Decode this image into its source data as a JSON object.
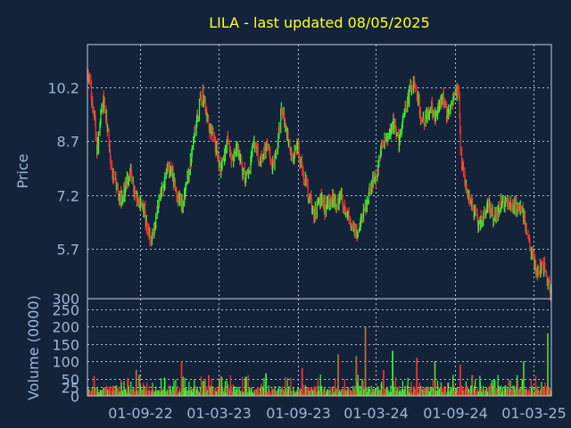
{
  "chart_data": [
    {
      "type": "candlestick",
      "title": "LILA - last updated 08/05/2025",
      "ylabel": "Price",
      "ylim": [
        4.3,
        11.4
      ],
      "y_ticks": [
        {
          "value": 5.7,
          "label": "5.7"
        },
        {
          "value": 7.2,
          "label": "7.2"
        },
        {
          "value": 8.7,
          "label": "8.7"
        },
        {
          "value": 10.2,
          "label": "10.2"
        }
      ],
      "x_ticks": [
        "01-09-22",
        "01-03-23",
        "01-09-23",
        "01-03-24",
        "01-09-24",
        "01-03-25"
      ],
      "up_color": "#33ff33",
      "down_color": "#ff3333",
      "price_path": [
        [
          "2022-05-01",
          10.6
        ],
        [
          "2022-05-10",
          10.0
        ],
        [
          "2022-05-18",
          9.3
        ],
        [
          "2022-05-24",
          8.4
        ],
        [
          "2022-06-01",
          9.4
        ],
        [
          "2022-06-08",
          9.9
        ],
        [
          "2022-06-14",
          9.3
        ],
        [
          "2022-06-21",
          8.6
        ],
        [
          "2022-06-28",
          7.7
        ],
        [
          "2022-07-05",
          7.6
        ],
        [
          "2022-07-12",
          7.2
        ],
        [
          "2022-07-19",
          7.0
        ],
        [
          "2022-07-26",
          7.3
        ],
        [
          "2022-08-02",
          7.6
        ],
        [
          "2022-08-09",
          7.9
        ],
        [
          "2022-08-16",
          7.4
        ],
        [
          "2022-08-23",
          7.1
        ],
        [
          "2022-08-30",
          7.0
        ],
        [
          "2022-09-06",
          6.9
        ],
        [
          "2022-09-13",
          6.5
        ],
        [
          "2022-09-20",
          6.1
        ],
        [
          "2022-09-27",
          5.9
        ],
        [
          "2022-10-04",
          6.4
        ],
        [
          "2022-10-11",
          6.8
        ],
        [
          "2022-10-18",
          7.2
        ],
        [
          "2022-10-25",
          7.5
        ],
        [
          "2022-11-01",
          7.8
        ],
        [
          "2022-11-08",
          8.0
        ],
        [
          "2022-11-15",
          7.7
        ],
        [
          "2022-11-22",
          7.3
        ],
        [
          "2022-11-29",
          7.1
        ],
        [
          "2022-12-06",
          6.9
        ],
        [
          "2022-12-13",
          7.2
        ],
        [
          "2022-12-20",
          7.7
        ],
        [
          "2022-12-27",
          8.2
        ],
        [
          "2023-01-03",
          8.7
        ],
        [
          "2023-01-10",
          9.3
        ],
        [
          "2023-01-17",
          9.8
        ],
        [
          "2023-01-24",
          10.0
        ],
        [
          "2023-01-31",
          9.6
        ],
        [
          "2023-02-07",
          9.1
        ],
        [
          "2023-02-14",
          8.9
        ],
        [
          "2023-02-21",
          8.6
        ],
        [
          "2023-02-28",
          8.3
        ],
        [
          "2023-03-07",
          7.9
        ],
        [
          "2023-03-14",
          8.2
        ],
        [
          "2023-03-21",
          8.7
        ],
        [
          "2023-03-28",
          8.4
        ],
        [
          "2023-04-04",
          8.1
        ],
        [
          "2023-04-11",
          8.5
        ],
        [
          "2023-04-18",
          8.3
        ],
        [
          "2023-04-25",
          7.9
        ],
        [
          "2023-05-02",
          7.6
        ],
        [
          "2023-05-09",
          7.8
        ],
        [
          "2023-05-16",
          8.3
        ],
        [
          "2023-05-23",
          8.6
        ],
        [
          "2023-05-30",
          8.4
        ],
        [
          "2023-06-06",
          8.1
        ],
        [
          "2023-06-13",
          8.3
        ],
        [
          "2023-06-20",
          8.6
        ],
        [
          "2023-06-27",
          8.4
        ],
        [
          "2023-07-04",
          8.0
        ],
        [
          "2023-07-11",
          8.2
        ],
        [
          "2023-07-18",
          8.8
        ],
        [
          "2023-07-25",
          9.6
        ],
        [
          "2023-08-01",
          9.3
        ],
        [
          "2023-08-08",
          8.9
        ],
        [
          "2023-08-15",
          8.5
        ],
        [
          "2023-08-22",
          8.2
        ],
        [
          "2023-08-29",
          8.6
        ],
        [
          "2023-09-05",
          8.3
        ],
        [
          "2023-09-12",
          7.9
        ],
        [
          "2023-09-19",
          7.6
        ],
        [
          "2023-09-26",
          7.2
        ],
        [
          "2023-10-03",
          6.9
        ],
        [
          "2023-10-10",
          6.6
        ],
        [
          "2023-10-17",
          6.9
        ],
        [
          "2023-10-24",
          7.1
        ],
        [
          "2023-10-31",
          6.8
        ],
        [
          "2023-11-07",
          6.9
        ],
        [
          "2023-11-14",
          7.0
        ],
        [
          "2023-11-21",
          7.1
        ],
        [
          "2023-11-28",
          6.9
        ],
        [
          "2023-12-05",
          7.0
        ],
        [
          "2023-12-12",
          7.1
        ],
        [
          "2023-12-19",
          6.8
        ],
        [
          "2023-12-26",
          6.7
        ],
        [
          "2024-01-02",
          6.5
        ],
        [
          "2024-01-09",
          6.3
        ],
        [
          "2024-01-16",
          6.1
        ],
        [
          "2024-01-23",
          6.3
        ],
        [
          "2024-01-30",
          6.6
        ],
        [
          "2024-02-06",
          6.9
        ],
        [
          "2024-02-13",
          7.2
        ],
        [
          "2024-02-20",
          7.5
        ],
        [
          "2024-02-27",
          7.6
        ],
        [
          "2024-03-05",
          7.9
        ],
        [
          "2024-03-12",
          8.4
        ],
        [
          "2024-03-19",
          8.7
        ],
        [
          "2024-03-26",
          8.6
        ],
        [
          "2024-04-02",
          8.9
        ],
        [
          "2024-04-09",
          9.2
        ],
        [
          "2024-04-16",
          9.0
        ],
        [
          "2024-04-23",
          8.7
        ],
        [
          "2024-04-30",
          9.2
        ],
        [
          "2024-05-07",
          9.7
        ],
        [
          "2024-05-14",
          9.9
        ],
        [
          "2024-05-21",
          10.2
        ],
        [
          "2024-05-28",
          10.4
        ],
        [
          "2024-06-04",
          10.1
        ],
        [
          "2024-06-11",
          9.5
        ],
        [
          "2024-06-18",
          9.2
        ],
        [
          "2024-06-25",
          9.4
        ],
        [
          "2024-07-02",
          9.5
        ],
        [
          "2024-07-09",
          9.6
        ],
        [
          "2024-07-16",
          9.4
        ],
        [
          "2024-07-23",
          9.7
        ],
        [
          "2024-07-30",
          10.0
        ],
        [
          "2024-08-06",
          9.7
        ],
        [
          "2024-08-13",
          9.4
        ],
        [
          "2024-08-20",
          9.6
        ],
        [
          "2024-08-27",
          9.9
        ],
        [
          "2024-09-03",
          10.1
        ],
        [
          "2024-09-10",
          10.0
        ],
        [
          "2024-09-13",
          8.4
        ],
        [
          "2024-09-20",
          7.9
        ],
        [
          "2024-09-27",
          7.3
        ],
        [
          "2024-10-04",
          7.1
        ],
        [
          "2024-10-11",
          6.9
        ],
        [
          "2024-10-18",
          6.7
        ],
        [
          "2024-10-25",
          6.4
        ],
        [
          "2024-11-01",
          6.5
        ],
        [
          "2024-11-08",
          6.6
        ],
        [
          "2024-11-15",
          6.9
        ],
        [
          "2024-11-22",
          6.8
        ],
        [
          "2024-11-29",
          6.5
        ],
        [
          "2024-12-06",
          6.7
        ],
        [
          "2024-12-13",
          6.9
        ],
        [
          "2024-12-20",
          7.0
        ],
        [
          "2024-12-27",
          6.9
        ],
        [
          "2025-01-03",
          7.0
        ],
        [
          "2025-01-10",
          6.8
        ],
        [
          "2025-01-17",
          6.9
        ],
        [
          "2025-01-24",
          6.8
        ],
        [
          "2025-01-31",
          6.9
        ],
        [
          "2025-02-07",
          6.6
        ],
        [
          "2025-02-14",
          6.1
        ],
        [
          "2025-02-21",
          5.8
        ],
        [
          "2025-02-28",
          5.4
        ],
        [
          "2025-03-07",
          5.1
        ],
        [
          "2025-03-14",
          5.0
        ],
        [
          "2025-03-21",
          5.3
        ],
        [
          "2025-03-28",
          5.2
        ],
        [
          "2025-04-04",
          4.8
        ],
        [
          "2025-04-11",
          4.5
        ]
      ]
    },
    {
      "type": "bar",
      "ylabel": "Volume (0000)",
      "ylim": [
        0,
        280
      ],
      "y_ticks": [
        0,
        25,
        50,
        100,
        150,
        200,
        250
      ],
      "spikes": [
        [
          "2022-08-23",
          75
        ],
        [
          "2022-12-06",
          100
        ],
        [
          "2023-02-07",
          60
        ],
        [
          "2023-06-20",
          65
        ],
        [
          "2023-09-12",
          80
        ],
        [
          "2023-12-05",
          120
        ],
        [
          "2024-01-16",
          115
        ],
        [
          "2024-02-06",
          200
        ],
        [
          "2024-03-19",
          75
        ],
        [
          "2024-04-09",
          130
        ],
        [
          "2024-06-04",
          110
        ],
        [
          "2024-07-16",
          100
        ],
        [
          "2024-09-13",
          90
        ],
        [
          "2024-10-11",
          60
        ],
        [
          "2025-02-07",
          100
        ],
        [
          "2025-04-04",
          180
        ]
      ]
    }
  ]
}
